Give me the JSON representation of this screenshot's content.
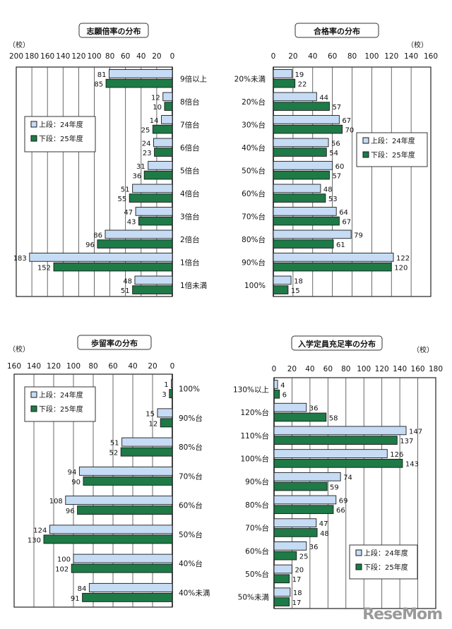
{
  "watermark": "ReseMom",
  "colors": {
    "fy24": "#c6dcf5",
    "fy25": "#1e7a46",
    "border": "#1a1a1a"
  },
  "chart_data": [
    {
      "type": "bar",
      "orientation": "horizontal",
      "title": "志願倍率の分布",
      "unit": "（校）",
      "direction": "leftward",
      "xlim": [
        0,
        200
      ],
      "ticks": [
        200,
        180,
        160,
        140,
        120,
        100,
        80,
        60,
        40,
        20,
        0
      ],
      "categories": [
        "9倍以上",
        "8倍台",
        "7倍台",
        "6倍台",
        "5倍台",
        "4倍台",
        "3倍台",
        "2倍台",
        "1倍台",
        "1倍未満"
      ],
      "series": [
        {
          "name": "上段：24年度",
          "values": [
            81,
            12,
            14,
            24,
            31,
            51,
            47,
            86,
            183,
            48
          ]
        },
        {
          "name": "下段：25年度",
          "values": [
            85,
            10,
            25,
            23,
            36,
            55,
            43,
            96,
            152,
            51
          ]
        }
      ],
      "legend": "left-upper",
      "grid": true
    },
    {
      "type": "bar",
      "orientation": "horizontal",
      "title": "合格率の分布",
      "unit": "（校）",
      "direction": "rightward",
      "xlim": [
        0,
        160
      ],
      "ticks": [
        0,
        20,
        40,
        60,
        80,
        100,
        120,
        140,
        160
      ],
      "categories": [
        "20%未満",
        "20%台",
        "30%台",
        "40%台",
        "50%台",
        "60%台",
        "70%台",
        "80%台",
        "90%台",
        "100%"
      ],
      "series": [
        {
          "name": "上段：24年度",
          "values": [
            19,
            44,
            67,
            56,
            60,
            48,
            64,
            79,
            122,
            18
          ]
        },
        {
          "name": "下段：25年度",
          "values": [
            22,
            57,
            70,
            54,
            57,
            53,
            67,
            61,
            120,
            15
          ]
        }
      ],
      "legend": "right-upper",
      "grid": true
    },
    {
      "type": "bar",
      "orientation": "horizontal",
      "title": "歩留率の分布",
      "unit": "（校）",
      "direction": "leftward",
      "xlim": [
        0,
        160
      ],
      "ticks": [
        160,
        140,
        120,
        100,
        80,
        60,
        40,
        20,
        0
      ],
      "categories": [
        "100%",
        "90%台",
        "80%台",
        "70%台",
        "60%台",
        "50%台",
        "40%台",
        "40%未満"
      ],
      "series": [
        {
          "name": "上段：24年度",
          "values": [
            1,
            15,
            51,
            94,
            108,
            124,
            100,
            84
          ]
        },
        {
          "name": "下段：25年度",
          "values": [
            3,
            12,
            52,
            90,
            96,
            130,
            102,
            91
          ]
        }
      ],
      "legend": "left-upper",
      "grid": true
    },
    {
      "type": "bar",
      "orientation": "horizontal",
      "title": "入学定員充足率の分布",
      "unit": "（校）",
      "direction": "rightward",
      "xlim": [
        0,
        180
      ],
      "ticks": [
        0,
        20,
        40,
        60,
        80,
        100,
        120,
        140,
        160,
        180
      ],
      "categories": [
        "130%以上",
        "120%台",
        "110%台",
        "100%台",
        "90%台",
        "80%台",
        "70%台",
        "60%台",
        "50%台",
        "50%未満"
      ],
      "series": [
        {
          "name": "上段：24年度",
          "values": [
            4,
            36,
            147,
            126,
            74,
            69,
            47,
            36,
            20,
            18
          ]
        },
        {
          "name": "下段：25年度",
          "values": [
            6,
            58,
            137,
            143,
            59,
            66,
            48,
            25,
            17,
            17
          ]
        }
      ],
      "legend": "right-lower",
      "grid": true
    }
  ]
}
